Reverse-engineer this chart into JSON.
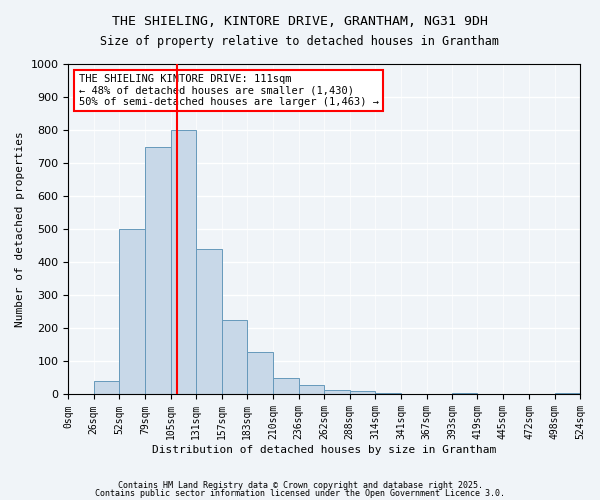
{
  "title_line1": "THE SHIELING, KINTORE DRIVE, GRANTHAM, NG31 9DH",
  "title_line2": "Size of property relative to detached houses in Grantham",
  "xlabel": "Distribution of detached houses by size in Grantham",
  "ylabel": "Number of detached properties",
  "bin_edges": [
    0,
    26,
    52,
    79,
    105,
    131,
    157,
    183,
    210,
    236,
    262,
    288,
    314,
    341,
    367,
    393,
    419,
    445,
    472,
    498,
    524
  ],
  "bar_heights": [
    0,
    40,
    500,
    750,
    800,
    440,
    225,
    130,
    50,
    30,
    15,
    10,
    5,
    2,
    1,
    5,
    0,
    0,
    0,
    5
  ],
  "bar_color": "#c8d8e8",
  "bar_edge_color": "#6699bb",
  "red_line_x": 111,
  "ylim": [
    0,
    1000
  ],
  "yticks": [
    0,
    100,
    200,
    300,
    400,
    500,
    600,
    700,
    800,
    900,
    1000
  ],
  "background_color": "#f0f4f8",
  "grid_color": "#ffffff",
  "annotation_title": "THE SHIELING KINTORE DRIVE: 111sqm",
  "annotation_line2": "← 48% of detached houses are smaller (1,430)",
  "annotation_line3": "50% of semi-detached houses are larger (1,463) →",
  "footnote1": "Contains HM Land Registry data © Crown copyright and database right 2025.",
  "footnote2": "Contains public sector information licensed under the Open Government Licence 3.0."
}
